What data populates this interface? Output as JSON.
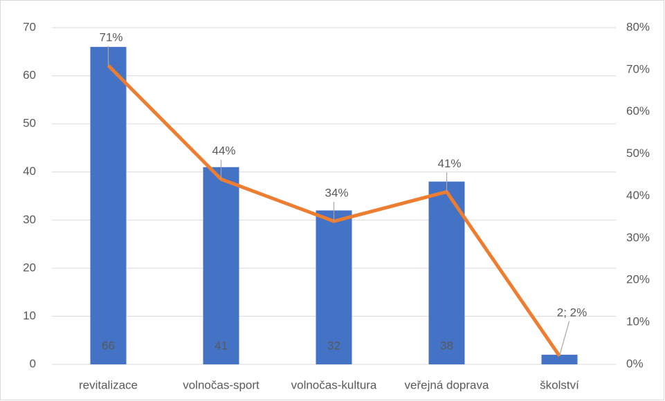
{
  "chart_data": {
    "type": "bar_line",
    "categories": [
      "revitalizace",
      "volnočas-sport",
      "volnočas-kultura",
      "veřejná doprava",
      "školství"
    ],
    "series": [
      {
        "type": "bar",
        "color": "#4472c4",
        "values": [
          66,
          41,
          32,
          38,
          2
        ],
        "value_labels": [
          66,
          41,
          32,
          38,
          null
        ]
      },
      {
        "type": "line",
        "axis": "y2",
        "color": "#ed7d31",
        "values": [
          71,
          44,
          34,
          41,
          2
        ],
        "value_labels": [
          "71%",
          "44%",
          "34%",
          "41%",
          "2; 2%"
        ]
      }
    ],
    "ylim": [
      0,
      70
    ],
    "yticks": [
      0,
      10,
      20,
      30,
      40,
      50,
      60,
      70
    ],
    "y2lim": [
      0,
      80
    ],
    "y2ticks": [
      {
        "value": 0,
        "label": "0%"
      },
      {
        "value": 10,
        "label": "10%"
      },
      {
        "value": 20,
        "label": "20%"
      },
      {
        "value": 30,
        "label": "30%"
      },
      {
        "value": 40,
        "label": "40%"
      },
      {
        "value": 50,
        "label": "50%"
      },
      {
        "value": 60,
        "label": "60%"
      },
      {
        "value": 70,
        "label": "70%"
      },
      {
        "value": 80,
        "label": "80%"
      }
    ],
    "grid": true
  }
}
